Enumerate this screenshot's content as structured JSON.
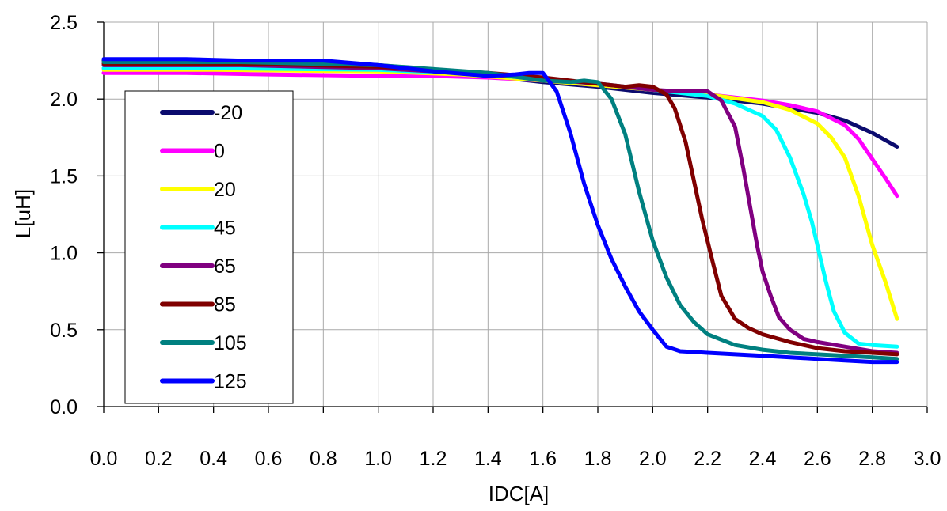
{
  "chart_data": {
    "type": "line",
    "xlabel": "IDC[A]",
    "ylabel": "L[uH]",
    "xlim": [
      0,
      3.0
    ],
    "ylim": [
      0,
      2.5
    ],
    "xticks": [
      "0.0",
      "0.2",
      "0.4",
      "0.6",
      "0.8",
      "1.0",
      "1.2",
      "1.4",
      "1.6",
      "1.8",
      "2.0",
      "2.2",
      "2.4",
      "2.6",
      "2.8",
      "3.0"
    ],
    "yticks": [
      "0.0",
      "0.5",
      "1.0",
      "1.5",
      "2.0",
      "2.5"
    ],
    "grid": true,
    "legend_position": "left",
    "series": [
      {
        "name": "-20",
        "color": "#0b0b6e",
        "x": [
          0,
          0.3,
          0.5,
          0.8,
          1.0,
          1.2,
          1.4,
          1.6,
          1.8,
          2.0,
          2.2,
          2.4,
          2.5,
          2.6,
          2.7,
          2.8,
          2.89
        ],
        "y": [
          2.25,
          2.25,
          2.24,
          2.24,
          2.22,
          2.19,
          2.15,
          2.11,
          2.08,
          2.04,
          2.01,
          1.97,
          1.94,
          1.91,
          1.86,
          1.78,
          1.69
        ]
      },
      {
        "name": "0",
        "color": "#ff00ff",
        "x": [
          0,
          0.3,
          0.6,
          1.0,
          1.2,
          1.4,
          1.6,
          1.8,
          2.0,
          2.2,
          2.4,
          2.5,
          2.6,
          2.7,
          2.75,
          2.8,
          2.85,
          2.89
        ],
        "y": [
          2.17,
          2.17,
          2.16,
          2.15,
          2.15,
          2.14,
          2.12,
          2.09,
          2.06,
          2.03,
          1.99,
          1.96,
          1.92,
          1.83,
          1.74,
          1.61,
          1.48,
          1.37
        ]
      },
      {
        "name": "20",
        "color": "#ffff00",
        "x": [
          0,
          0.4,
          1.0,
          1.3,
          1.6,
          1.8,
          2.0,
          2.2,
          2.4,
          2.5,
          2.6,
          2.65,
          2.7,
          2.75,
          2.8,
          2.85,
          2.89
        ],
        "y": [
          2.19,
          2.19,
          2.18,
          2.16,
          2.12,
          2.09,
          2.06,
          2.03,
          1.98,
          1.93,
          1.84,
          1.75,
          1.62,
          1.37,
          1.05,
          0.8,
          0.57
        ]
      },
      {
        "name": "45",
        "color": "#00ffff",
        "x": [
          0,
          0.4,
          1.0,
          1.3,
          1.6,
          1.8,
          2.0,
          2.2,
          2.3,
          2.4,
          2.45,
          2.5,
          2.55,
          2.58,
          2.6,
          2.63,
          2.66,
          2.7,
          2.75,
          2.8,
          2.89
        ],
        "y": [
          2.2,
          2.2,
          2.19,
          2.17,
          2.13,
          2.1,
          2.06,
          2.02,
          1.97,
          1.89,
          1.8,
          1.62,
          1.38,
          1.2,
          1.05,
          0.82,
          0.62,
          0.48,
          0.41,
          0.4,
          0.39
        ]
      },
      {
        "name": "65",
        "color": "#800080",
        "x": [
          0,
          0.5,
          1.0,
          1.4,
          1.6,
          1.8,
          2.0,
          2.1,
          2.2,
          2.25,
          2.3,
          2.33,
          2.36,
          2.38,
          2.4,
          2.43,
          2.46,
          2.5,
          2.55,
          2.6,
          2.7,
          2.8,
          2.89
        ],
        "y": [
          2.22,
          2.22,
          2.2,
          2.16,
          2.13,
          2.1,
          2.06,
          2.05,
          2.05,
          1.99,
          1.82,
          1.55,
          1.25,
          1.05,
          0.88,
          0.72,
          0.58,
          0.5,
          0.44,
          0.42,
          0.39,
          0.36,
          0.35
        ]
      },
      {
        "name": "85",
        "color": "#800000",
        "x": [
          0,
          0.5,
          1.0,
          1.4,
          1.6,
          1.8,
          1.9,
          1.95,
          2.0,
          2.05,
          2.08,
          2.12,
          2.15,
          2.18,
          2.22,
          2.25,
          2.3,
          2.35,
          2.4,
          2.5,
          2.6,
          2.7,
          2.8,
          2.89
        ],
        "y": [
          2.23,
          2.23,
          2.21,
          2.17,
          2.14,
          2.1,
          2.08,
          2.09,
          2.08,
          2.03,
          1.94,
          1.72,
          1.47,
          1.22,
          0.93,
          0.72,
          0.57,
          0.51,
          0.47,
          0.42,
          0.38,
          0.36,
          0.35,
          0.34
        ]
      },
      {
        "name": "105",
        "color": "#008080",
        "x": [
          0,
          0.5,
          1.0,
          1.4,
          1.6,
          1.7,
          1.75,
          1.8,
          1.85,
          1.9,
          1.95,
          2.0,
          2.05,
          2.1,
          2.15,
          2.2,
          2.3,
          2.4,
          2.5,
          2.6,
          2.7,
          2.8,
          2.89
        ],
        "y": [
          2.24,
          2.24,
          2.22,
          2.17,
          2.12,
          2.11,
          2.12,
          2.11,
          2.0,
          1.77,
          1.4,
          1.08,
          0.84,
          0.66,
          0.55,
          0.47,
          0.4,
          0.37,
          0.35,
          0.34,
          0.33,
          0.32,
          0.31
        ]
      },
      {
        "name": "125",
        "color": "#0000ff",
        "x": [
          0,
          0.3,
          0.5,
          0.8,
          1.0,
          1.2,
          1.4,
          1.5,
          1.55,
          1.6,
          1.65,
          1.7,
          1.75,
          1.8,
          1.85,
          1.9,
          1.95,
          2.0,
          2.05,
          2.1,
          2.2,
          2.3,
          2.4,
          2.5,
          2.6,
          2.7,
          2.8,
          2.89
        ],
        "y": [
          2.26,
          2.26,
          2.25,
          2.25,
          2.22,
          2.18,
          2.15,
          2.16,
          2.17,
          2.17,
          2.05,
          1.78,
          1.45,
          1.18,
          0.96,
          0.78,
          0.62,
          0.5,
          0.39,
          0.36,
          0.35,
          0.34,
          0.33,
          0.32,
          0.31,
          0.3,
          0.29,
          0.29
        ]
      }
    ]
  }
}
